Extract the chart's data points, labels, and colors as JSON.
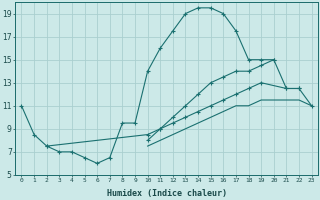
{
  "xlabel": "Humidex (Indice chaleur)",
  "ylabel": "",
  "xlim": [
    -0.5,
    23.5
  ],
  "ylim": [
    5,
    20
  ],
  "xticks": [
    0,
    1,
    2,
    3,
    4,
    5,
    6,
    7,
    8,
    9,
    10,
    11,
    12,
    13,
    14,
    15,
    16,
    17,
    18,
    19,
    20,
    21,
    22,
    23
  ],
  "yticks": [
    5,
    7,
    9,
    11,
    13,
    15,
    17,
    19
  ],
  "background_color": "#cce9e8",
  "grid_color": "#aacfcf",
  "line_color": "#1a7070",
  "lines": [
    {
      "x": [
        0,
        1,
        2,
        3,
        4,
        5,
        6,
        7,
        8,
        9,
        10,
        11,
        12,
        13,
        14,
        15,
        16,
        17,
        18,
        19,
        20,
        21,
        22
      ],
      "y": [
        11,
        8.5,
        7.5,
        7,
        7,
        6.5,
        6,
        6.5,
        9.5,
        9.5,
        14,
        16,
        17.5,
        19,
        19.5,
        19.5,
        19,
        17.5,
        15,
        15,
        15,
        12.5,
        12.5
      ],
      "marker": "+"
    },
    {
      "x": [
        2,
        10,
        11,
        12,
        13,
        14,
        15,
        16,
        17,
        18,
        19,
        21,
        22,
        23
      ],
      "y": [
        7.5,
        8.5,
        9.0,
        9.5,
        10,
        10.5,
        11,
        11.5,
        12,
        12.5,
        13,
        12.5,
        12.5,
        11
      ],
      "marker": "+"
    },
    {
      "x": [
        10,
        11,
        12,
        13,
        14,
        15,
        16,
        17,
        18,
        19,
        20
      ],
      "y": [
        8.0,
        9.0,
        10.0,
        11.0,
        12.0,
        13.0,
        13.5,
        14.0,
        14.0,
        14.5,
        15.0
      ],
      "marker": "+"
    },
    {
      "x": [
        10,
        11,
        12,
        13,
        14,
        15,
        16,
        17,
        18,
        19,
        20,
        21,
        22,
        23
      ],
      "y": [
        7.5,
        8.0,
        8.5,
        9.0,
        9.5,
        10.0,
        10.5,
        11.0,
        11.0,
        11.5,
        11.5,
        11.5,
        11.5,
        11.0
      ],
      "marker": null
    }
  ]
}
